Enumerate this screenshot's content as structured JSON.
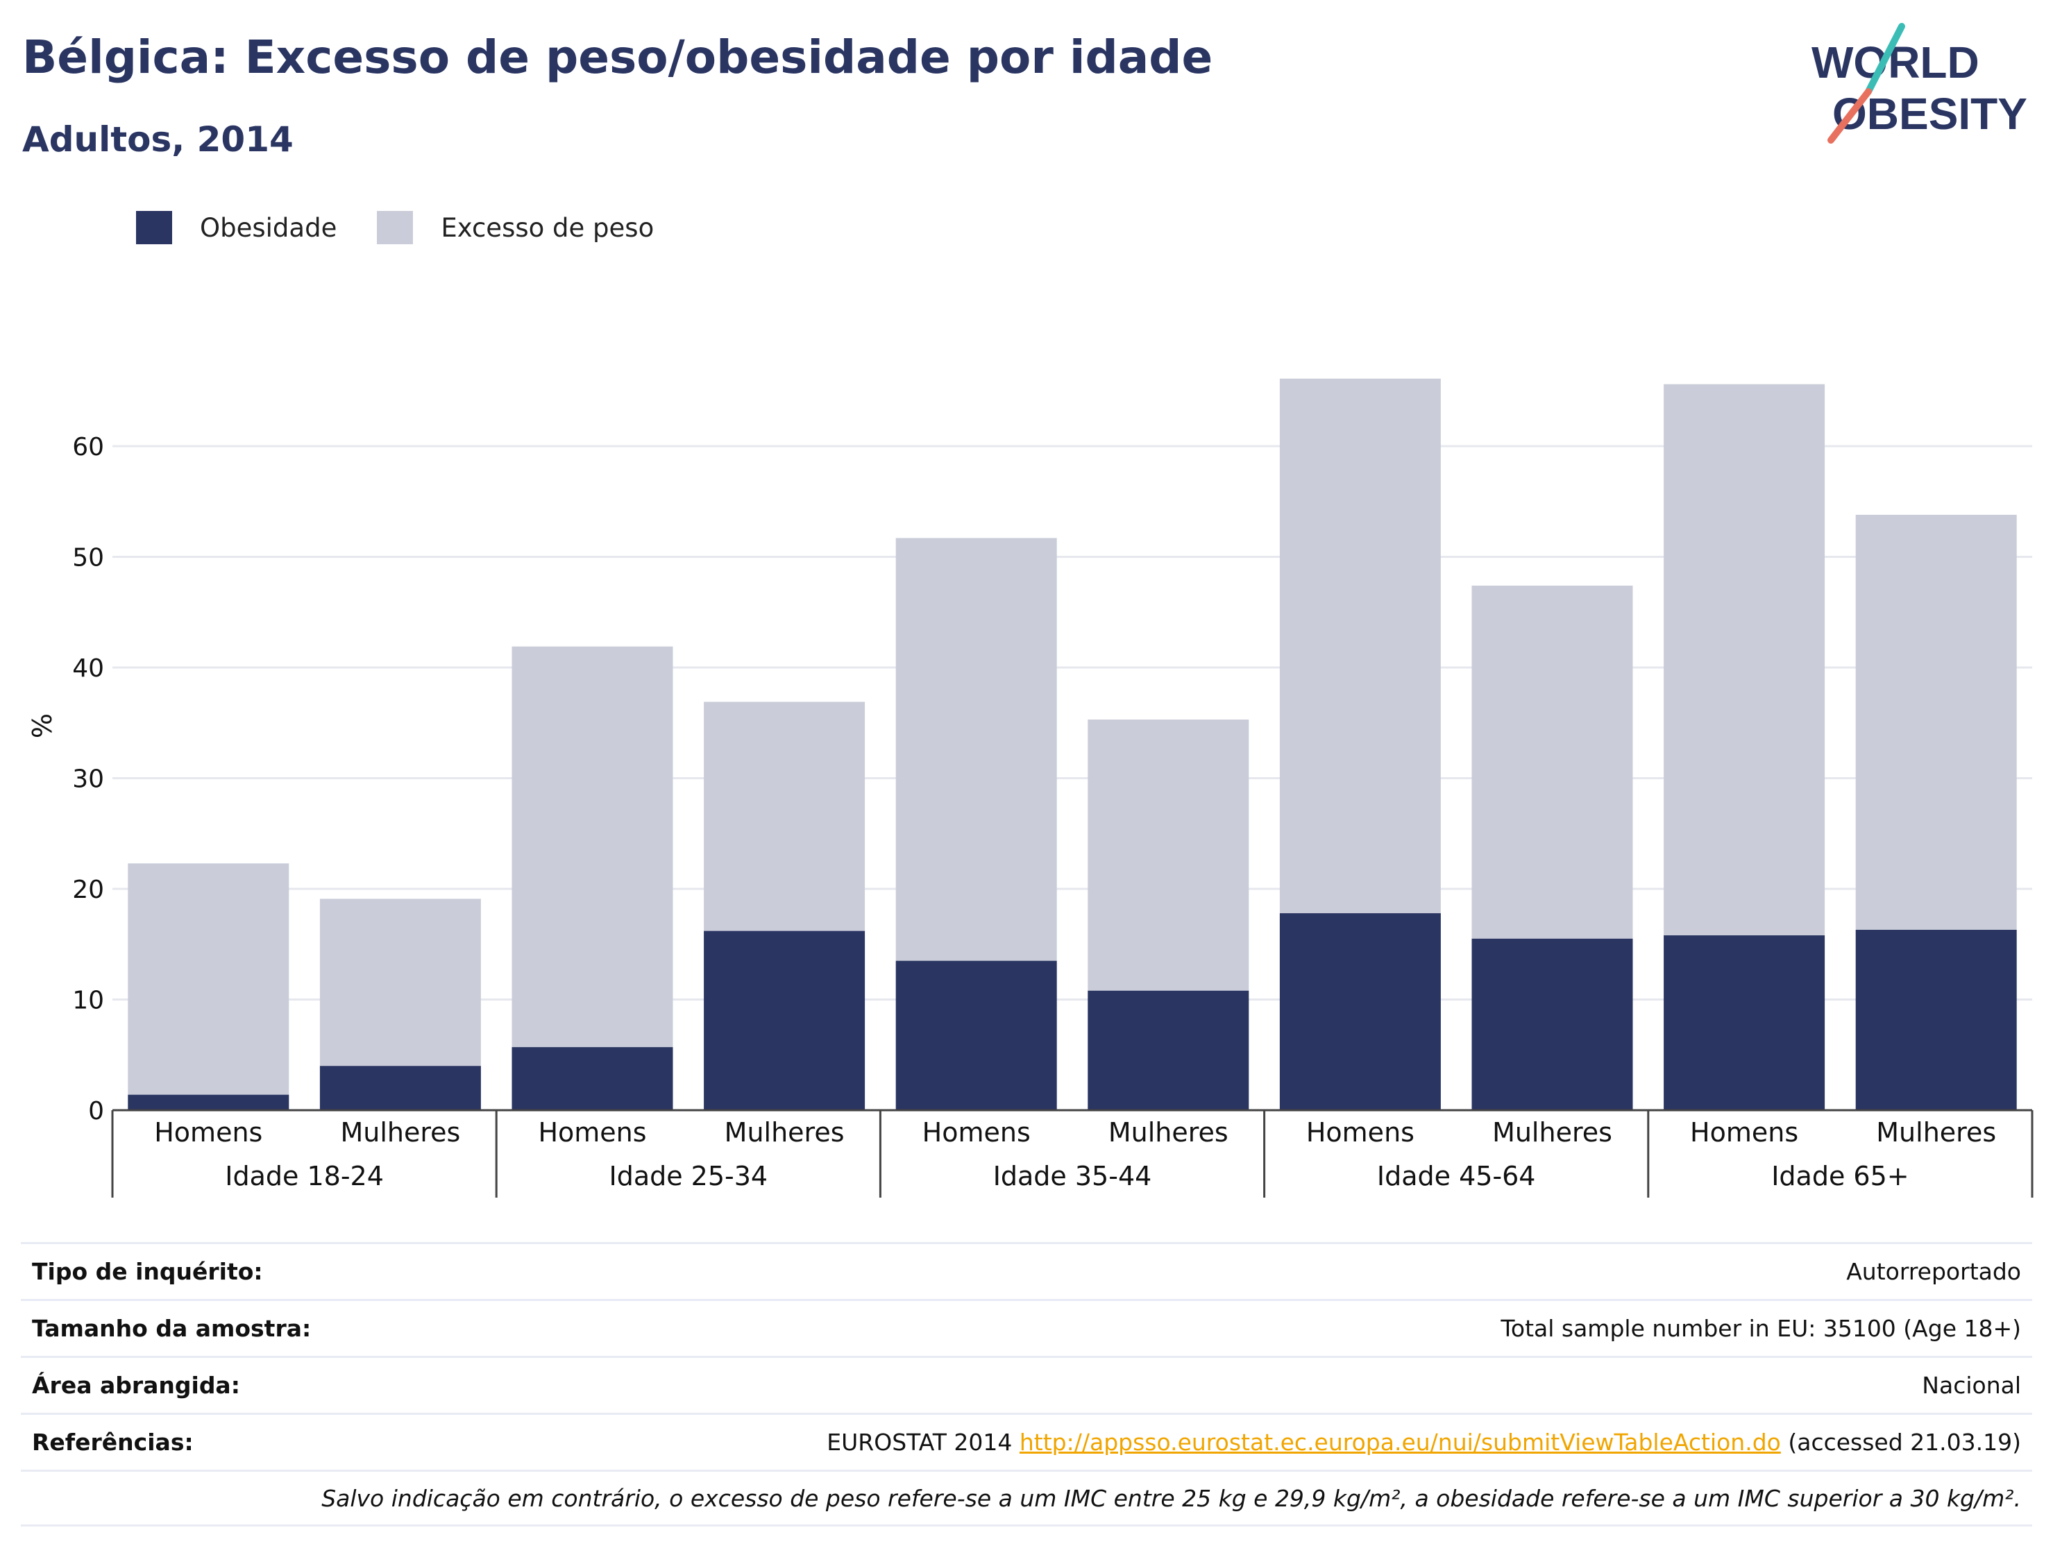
{
  "header": {
    "title": "Bélgica: Excesso de peso/obesidade por idade",
    "subtitle": "Adultos, 2014"
  },
  "logo": {
    "line1": "WORLD",
    "line2": "OBESITY"
  },
  "colors": {
    "obesity": "#2a3562",
    "overweight": "#cacdd9",
    "title": "#2a3562",
    "link": "#f0a500"
  },
  "chart_data": {
    "type": "bar",
    "stacked": true,
    "ylabel": "%",
    "ylim": [
      0,
      70
    ],
    "yticks": [
      0,
      10,
      20,
      30,
      40,
      50,
      60
    ],
    "grid": true,
    "legend_position": "top-left",
    "groups": [
      "Idade 18-24",
      "Idade 25-34",
      "Idade 35-44",
      "Idade 45-64",
      "Idade 65+"
    ],
    "categories": [
      "Homens",
      "Mulheres",
      "Homens",
      "Mulheres",
      "Homens",
      "Mulheres",
      "Homens",
      "Mulheres",
      "Homens",
      "Mulheres"
    ],
    "series": [
      {
        "name": "Obesidade",
        "values": [
          1.4,
          4.0,
          5.7,
          16.2,
          13.5,
          10.8,
          17.8,
          15.5,
          15.8,
          16.3
        ]
      },
      {
        "name": "Excesso de peso",
        "values": [
          20.9,
          15.1,
          36.2,
          20.7,
          38.2,
          24.5,
          48.3,
          31.9,
          49.8,
          37.5
        ]
      }
    ]
  },
  "info": {
    "rows": [
      {
        "key": "Tipo de inquérito:",
        "value": "Autorreportado"
      },
      {
        "key": "Tamanho da amostra:",
        "value": "Total sample number in EU: 35100 (Age 18+)"
      },
      {
        "key": "Área abrangida:",
        "value": "Nacional"
      }
    ],
    "references": {
      "key": "Referências:",
      "source": "EUROSTAT 2014",
      "link": "http://appsso.eurostat.ec.europa.eu/nui/submitViewTableAction.do",
      "accessed": "(accessed 21.03.19)"
    },
    "note": "Salvo indicação em contrário, o excesso de peso refere-se a um IMC entre 25 kg e 29,9 kg/m², a obesidade refere-se a um IMC superior a 30 kg/m²."
  }
}
